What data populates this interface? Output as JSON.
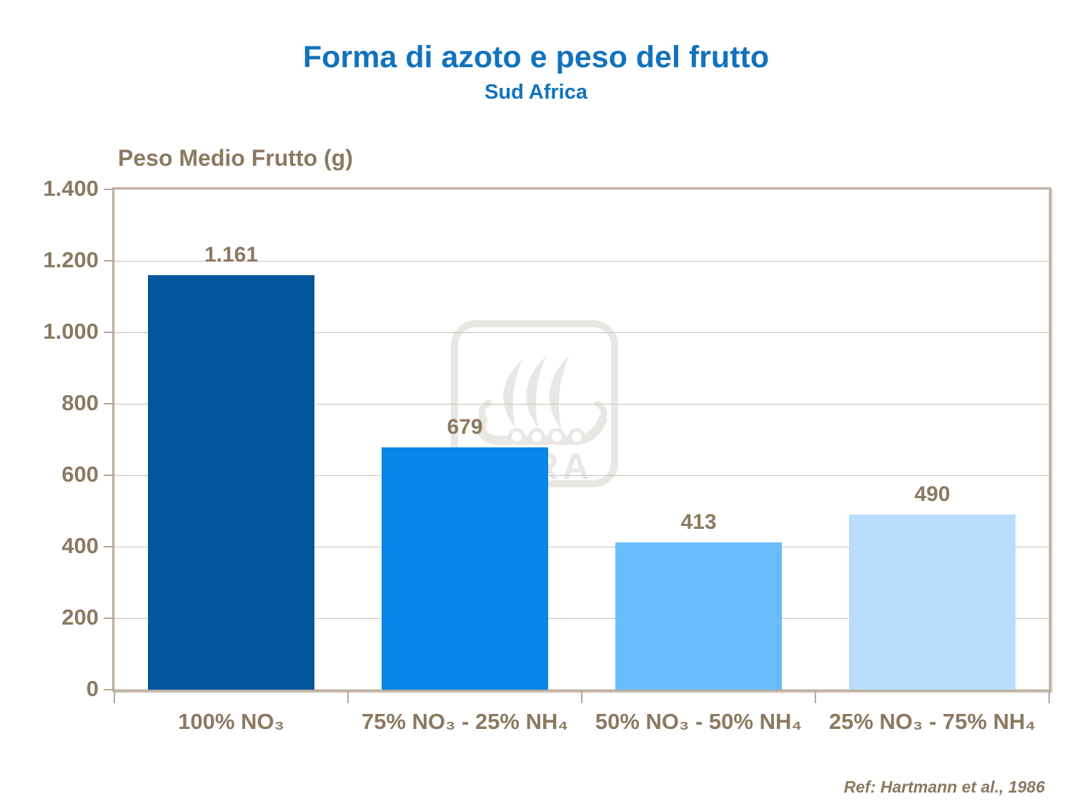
{
  "title": "Forma di azoto e peso del frutto",
  "subtitle": "Sud Africa",
  "reference": "Ref: Hartmann et al., 1986",
  "watermark_text": "YARA",
  "colors": {
    "title_blue": "#1272BD",
    "label_brown": "#8B7961",
    "axis_frame": "#BCAFA2",
    "gridline": "#CBC2B9",
    "watermark_gray": "#E9E7E4"
  },
  "chart_data": {
    "type": "bar",
    "title": "Forma di azoto e peso del frutto",
    "subtitle": "Sud Africa",
    "ylabel": "Peso Medio Frutto (g)",
    "xlabel": "",
    "categories": [
      "100% NO₃",
      "75% NO₃ - 25% NH₄",
      "50% NO₃ - 50% NH₄",
      "25% NO₃ - 75% NH₄"
    ],
    "values": [
      1161,
      679,
      413,
      490
    ],
    "value_labels": [
      "1.161",
      "679",
      "413",
      "490"
    ],
    "bar_colors": [
      "#03569B",
      "#0786E7",
      "#69BCFB",
      "#B9DDFC"
    ],
    "ylim": [
      0,
      1400
    ],
    "ytick_labels": [
      "1.400",
      "1.200",
      "1.000",
      "800",
      "600",
      "400",
      "200",
      "0"
    ],
    "ytick_values": [
      1400,
      1200,
      1000,
      800,
      600,
      400,
      200,
      0
    ],
    "grid": true,
    "legend": false,
    "annotation": "Ref: Hartmann et al., 1986"
  }
}
